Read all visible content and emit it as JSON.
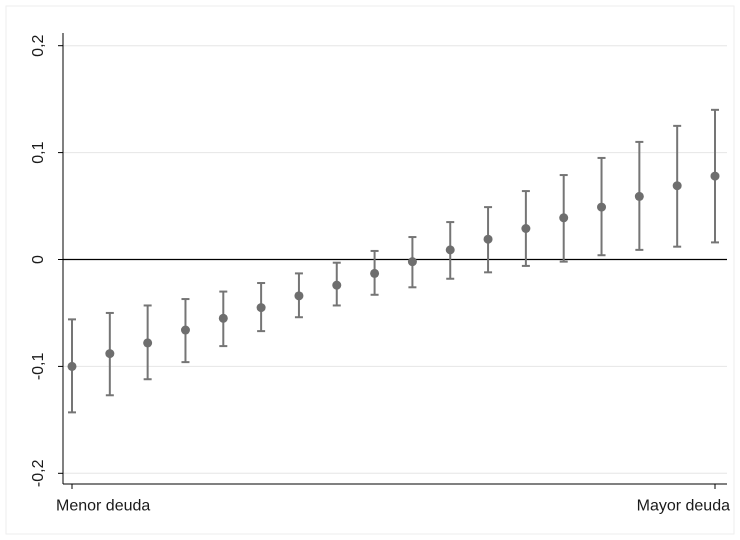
{
  "chart_data": {
    "type": "scatter",
    "title": "",
    "xlabel": "",
    "ylabel": "",
    "x_tick_labels": [
      "Menor deuda",
      "Mayor deuda"
    ],
    "y_ticks": [
      -0.2,
      -0.1,
      0,
      0.1,
      0.2
    ],
    "y_tick_labels": [
      "-0,2",
      "-0,1",
      "0",
      "0,1",
      "0,2"
    ],
    "ylim": [
      -0.21,
      0.21
    ],
    "grid": true,
    "reference_line_y": 0,
    "colors": {
      "point": "#6e6e6e",
      "errorbar": "#757575",
      "grid": "#e6e6e6",
      "axis": "#000000",
      "zero_line": "#000000"
    },
    "x": [
      1,
      2,
      3,
      4,
      5,
      6,
      7,
      8,
      9,
      10,
      11,
      12,
      13,
      14,
      15,
      16,
      17,
      18
    ],
    "series": [
      {
        "values": [
          -0.1,
          -0.088,
          -0.078,
          -0.066,
          -0.055,
          -0.045,
          -0.034,
          -0.024,
          -0.013,
          -0.002,
          0.009,
          0.019,
          0.029,
          0.039,
          0.049,
          0.059,
          0.069,
          0.078
        ],
        "lower": [
          -0.143,
          -0.127,
          -0.112,
          -0.096,
          -0.081,
          -0.067,
          -0.054,
          -0.043,
          -0.033,
          -0.026,
          -0.018,
          -0.012,
          -0.006,
          -0.002,
          0.004,
          0.009,
          0.012,
          0.016
        ],
        "upper": [
          -0.056,
          -0.05,
          -0.043,
          -0.037,
          -0.03,
          -0.022,
          -0.013,
          -0.003,
          0.008,
          0.021,
          0.035,
          0.049,
          0.064,
          0.079,
          0.095,
          0.11,
          0.125,
          0.14
        ]
      }
    ]
  }
}
